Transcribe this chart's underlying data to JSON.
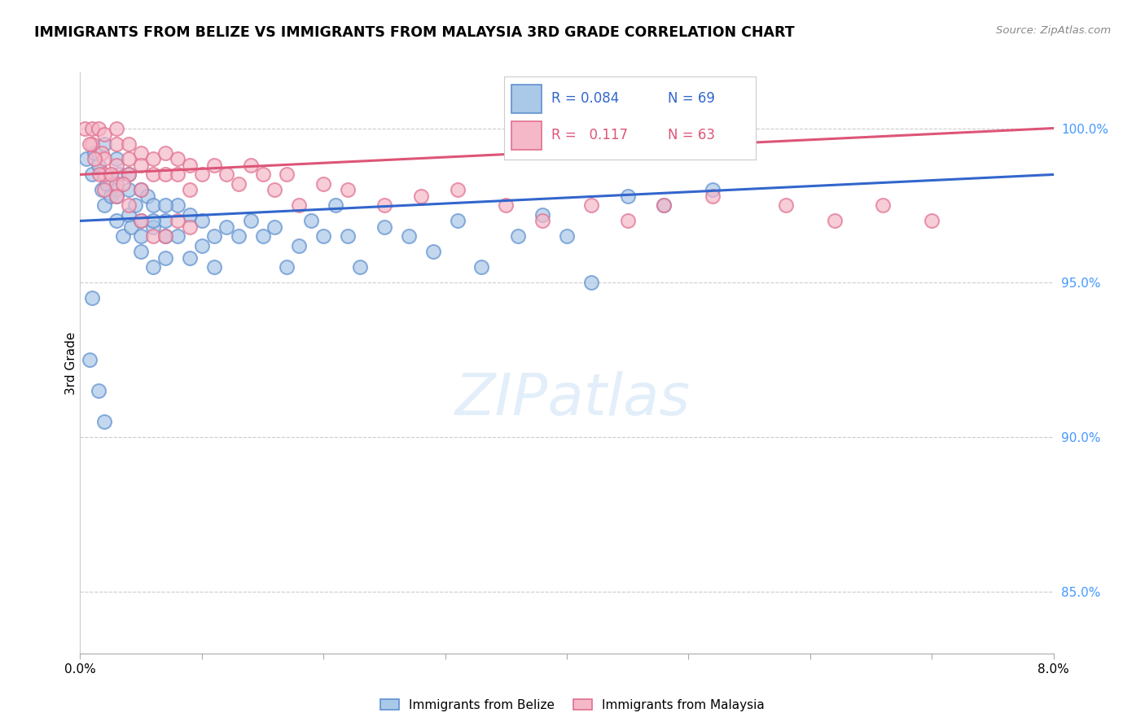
{
  "title": "IMMIGRANTS FROM BELIZE VS IMMIGRANTS FROM MALAYSIA 3RD GRADE CORRELATION CHART",
  "source": "Source: ZipAtlas.com",
  "ylabel": "3rd Grade",
  "right_ytick_values": [
    100.0,
    95.0,
    90.0,
    85.0
  ],
  "xmin": 0.0,
  "xmax": 0.08,
  "ymin": 83.0,
  "ymax": 101.8,
  "belize_color": "#aac8e8",
  "malaysia_color": "#f5b8c8",
  "belize_edge_color": "#6090d0",
  "malaysia_edge_color": "#e07090",
  "belize_line_color": "#3366cc",
  "malaysia_line_color": "#dd5577",
  "legend_R_belize": "0.084",
  "legend_N_belize": "69",
  "legend_R_malaysia": "0.117",
  "legend_N_malaysia": "63",
  "belize_x": [
    0.0005,
    0.001,
    0.0012,
    0.0015,
    0.0018,
    0.002,
    0.002,
    0.0022,
    0.0025,
    0.003,
    0.003,
    0.003,
    0.0032,
    0.0035,
    0.004,
    0.004,
    0.0042,
    0.0045,
    0.005,
    0.005,
    0.005,
    0.0055,
    0.006,
    0.006,
    0.006,
    0.007,
    0.007,
    0.007,
    0.008,
    0.008,
    0.009,
    0.009,
    0.01,
    0.01,
    0.011,
    0.011,
    0.012,
    0.013,
    0.014,
    0.015,
    0.016,
    0.017,
    0.018,
    0.019,
    0.02,
    0.021,
    0.022,
    0.023,
    0.025,
    0.027,
    0.029,
    0.031,
    0.033,
    0.036,
    0.038,
    0.04,
    0.042,
    0.045,
    0.048,
    0.052,
    0.001,
    0.0008,
    0.0015,
    0.002,
    0.003,
    0.004,
    0.005,
    0.006,
    0.007
  ],
  "belize_y": [
    99.0,
    98.5,
    99.2,
    98.8,
    98.0,
    99.5,
    97.5,
    98.2,
    97.8,
    99.0,
    98.0,
    97.0,
    98.5,
    96.5,
    98.0,
    97.2,
    96.8,
    97.5,
    98.0,
    97.0,
    96.5,
    97.8,
    97.5,
    96.8,
    95.5,
    97.0,
    96.5,
    95.8,
    97.5,
    96.5,
    97.2,
    95.8,
    97.0,
    96.2,
    96.5,
    95.5,
    96.8,
    96.5,
    97.0,
    96.5,
    96.8,
    95.5,
    96.2,
    97.0,
    96.5,
    97.5,
    96.5,
    95.5,
    96.8,
    96.5,
    96.0,
    97.0,
    95.5,
    96.5,
    97.2,
    96.5,
    95.0,
    97.8,
    97.5,
    98.0,
    94.5,
    92.5,
    91.5,
    90.5,
    97.8,
    98.5,
    96.0,
    97.0,
    97.5
  ],
  "malaysia_x": [
    0.0004,
    0.001,
    0.001,
    0.0015,
    0.0018,
    0.002,
    0.002,
    0.002,
    0.003,
    0.003,
    0.003,
    0.003,
    0.004,
    0.004,
    0.004,
    0.005,
    0.005,
    0.005,
    0.006,
    0.006,
    0.007,
    0.007,
    0.008,
    0.008,
    0.009,
    0.009,
    0.01,
    0.011,
    0.012,
    0.013,
    0.014,
    0.015,
    0.016,
    0.017,
    0.018,
    0.02,
    0.022,
    0.025,
    0.028,
    0.031,
    0.035,
    0.038,
    0.042,
    0.045,
    0.048,
    0.052,
    0.058,
    0.062,
    0.066,
    0.07,
    0.0008,
    0.0012,
    0.0016,
    0.002,
    0.0025,
    0.003,
    0.0035,
    0.004,
    0.005,
    0.006,
    0.007,
    0.008,
    0.009
  ],
  "malaysia_y": [
    100.0,
    100.0,
    99.5,
    100.0,
    99.2,
    99.8,
    99.0,
    98.5,
    100.0,
    99.5,
    98.8,
    98.2,
    99.5,
    99.0,
    98.5,
    99.2,
    98.8,
    98.0,
    99.0,
    98.5,
    99.2,
    98.5,
    99.0,
    98.5,
    98.8,
    98.0,
    98.5,
    98.8,
    98.5,
    98.2,
    98.8,
    98.5,
    98.0,
    98.5,
    97.5,
    98.2,
    98.0,
    97.5,
    97.8,
    98.0,
    97.5,
    97.0,
    97.5,
    97.0,
    97.5,
    97.8,
    97.5,
    97.0,
    97.5,
    97.0,
    99.5,
    99.0,
    98.5,
    98.0,
    98.5,
    97.8,
    98.2,
    97.5,
    97.0,
    96.5,
    96.5,
    97.0,
    96.8
  ]
}
